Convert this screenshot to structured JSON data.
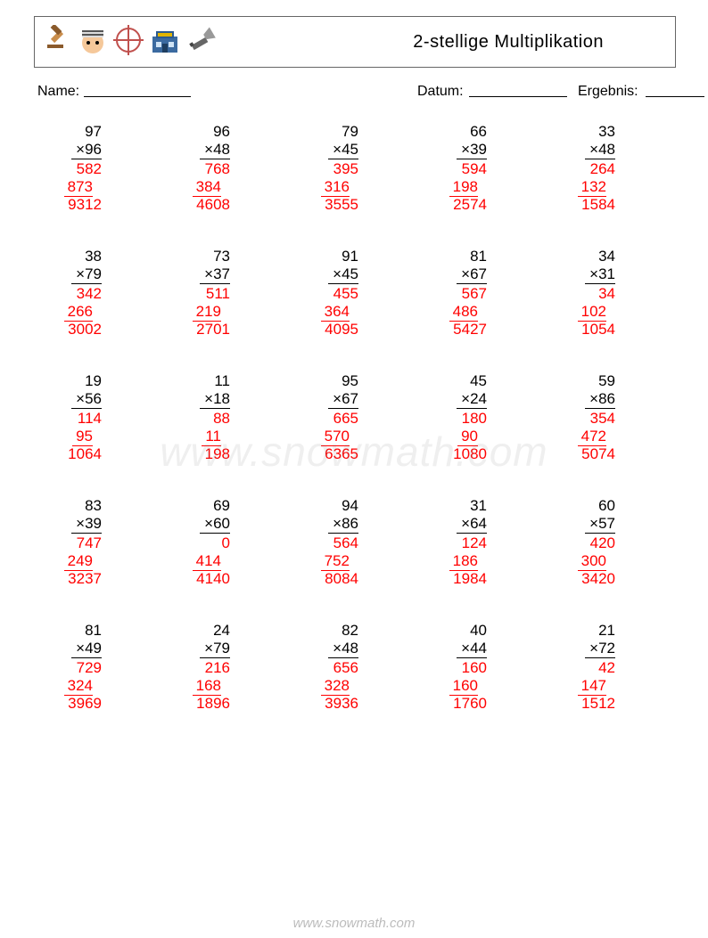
{
  "title": "2-stellige Multiplikation",
  "labels": {
    "name": "Name:",
    "datum": "Datum:",
    "ergebnis": "Ergebnis:"
  },
  "watermark": "www.snowmath.com",
  "footer": "www.snowmath.com",
  "colors": {
    "problem_text": "#000000",
    "answer_text": "#ff0000",
    "background": "#ffffff",
    "watermark": "rgba(120,120,120,0.12)"
  },
  "font": {
    "family": "Arial",
    "title_size": 20,
    "body_size": 17,
    "info_size": 16
  },
  "layout": {
    "columns": 5,
    "rows": 5
  },
  "problems": [
    [
      {
        "a": "97",
        "b": "96",
        "p1": "582",
        "p2": "873",
        "r": "9312"
      },
      {
        "a": "96",
        "b": "48",
        "p1": "768",
        "p2": "384",
        "r": "4608"
      },
      {
        "a": "79",
        "b": "45",
        "p1": "395",
        "p2": "316",
        "r": "3555"
      },
      {
        "a": "66",
        "b": "39",
        "p1": "594",
        "p2": "198",
        "r": "2574"
      },
      {
        "a": "33",
        "b": "48",
        "p1": "264",
        "p2": "132",
        "r": "1584"
      }
    ],
    [
      {
        "a": "38",
        "b": "79",
        "p1": "342",
        "p2": "266",
        "r": "3002"
      },
      {
        "a": "73",
        "b": "37",
        "p1": "511",
        "p2": "219",
        "r": "2701"
      },
      {
        "a": "91",
        "b": "45",
        "p1": "455",
        "p2": "364",
        "r": "4095"
      },
      {
        "a": "81",
        "b": "67",
        "p1": "567",
        "p2": "486",
        "r": "5427"
      },
      {
        "a": "34",
        "b": "31",
        "p1": "34",
        "p2": "102",
        "r": "1054"
      }
    ],
    [
      {
        "a": "19",
        "b": "56",
        "p1": "114",
        "p2": "95",
        "r": "1064"
      },
      {
        "a": "11",
        "b": "18",
        "p1": "88",
        "p2": "11",
        "r": "198"
      },
      {
        "a": "95",
        "b": "67",
        "p1": "665",
        "p2": "570",
        "r": "6365"
      },
      {
        "a": "45",
        "b": "24",
        "p1": "180",
        "p2": "90",
        "r": "1080"
      },
      {
        "a": "59",
        "b": "86",
        "p1": "354",
        "p2": "472",
        "r": "5074"
      }
    ],
    [
      {
        "a": "83",
        "b": "39",
        "p1": "747",
        "p2": "249",
        "r": "3237"
      },
      {
        "a": "69",
        "b": "60",
        "p1": "0",
        "p2": "414",
        "r": "4140"
      },
      {
        "a": "94",
        "b": "86",
        "p1": "564",
        "p2": "752",
        "r": "8084"
      },
      {
        "a": "31",
        "b": "64",
        "p1": "124",
        "p2": "186",
        "r": "1984"
      },
      {
        "a": "60",
        "b": "57",
        "p1": "420",
        "p2": "300",
        "r": "3420"
      }
    ],
    [
      {
        "a": "81",
        "b": "49",
        "p1": "729",
        "p2": "324",
        "r": "3969"
      },
      {
        "a": "24",
        "b": "79",
        "p1": "216",
        "p2": "168",
        "r": "1896"
      },
      {
        "a": "82",
        "b": "48",
        "p1": "656",
        "p2": "328",
        "r": "3936"
      },
      {
        "a": "40",
        "b": "44",
        "p1": "160",
        "p2": "160",
        "r": "1760"
      },
      {
        "a": "21",
        "b": "72",
        "p1": "42",
        "p2": "147",
        "r": "1512"
      }
    ]
  ]
}
